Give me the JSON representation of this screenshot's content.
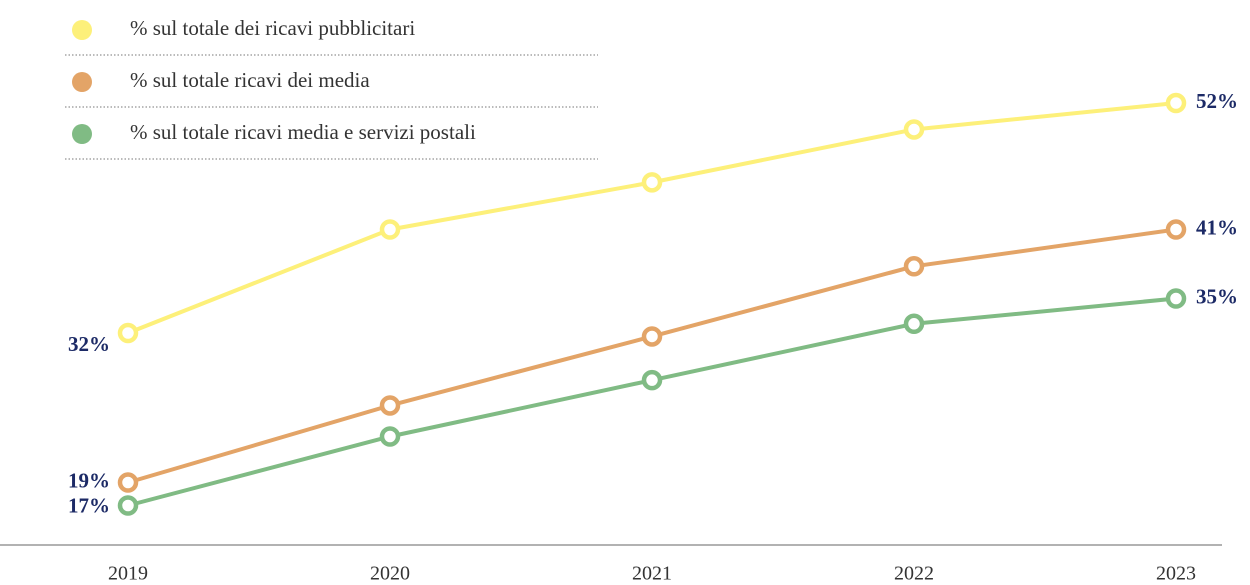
{
  "chart_data": {
    "type": "line",
    "categories": [
      "2019",
      "2020",
      "2021",
      "2022",
      "2023"
    ],
    "series": [
      {
        "name": "% sul totale dei ricavi pubblicitari",
        "color": "#fdf07a",
        "values": [
          32,
          41,
          45.1,
          49.7,
          52
        ],
        "value_labels": [
          "32%",
          null,
          null,
          null,
          "52%"
        ]
      },
      {
        "name": "% sul totale ricavi dei media",
        "color": "#e3a467",
        "values": [
          19,
          25.7,
          31.7,
          37.8,
          41
        ],
        "value_labels": [
          "19%",
          null,
          null,
          null,
          "41%"
        ]
      },
      {
        "name": "% sul totale ricavi media e servizi postali",
        "color": "#80bb84",
        "values": [
          17,
          23,
          27.9,
          32.8,
          35
        ],
        "value_labels": [
          "17%",
          null,
          null,
          null,
          "35%"
        ]
      }
    ],
    "ylim": [
      13,
      55
    ],
    "legend": "top-left"
  }
}
